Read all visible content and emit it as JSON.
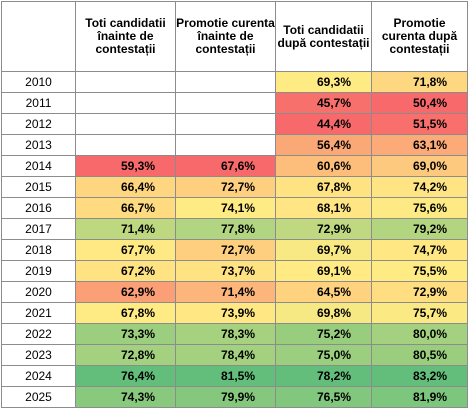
{
  "headers": [
    "",
    "Toti candidatii înainte de contestații",
    "Promotie curenta înainte de contestații",
    "Toti candidatii după contestații",
    "Promotie curenta după contestații"
  ],
  "rows": [
    {
      "year": "2010",
      "c1": "",
      "c2": "",
      "c3": "69,3%",
      "c4": "71,8%"
    },
    {
      "year": "2011",
      "c1": "",
      "c2": "",
      "c3": "45,7%",
      "c4": "50,4%"
    },
    {
      "year": "2012",
      "c1": "",
      "c2": "",
      "c3": "44,4%",
      "c4": "51,5%"
    },
    {
      "year": "2013",
      "c1": "",
      "c2": "",
      "c3": "56,4%",
      "c4": "63,1%"
    },
    {
      "year": "2014",
      "c1": "59,3%",
      "c2": "67,6%",
      "c3": "60,6%",
      "c4": "69,0%"
    },
    {
      "year": "2015",
      "c1": "66,4%",
      "c2": "72,7%",
      "c3": "67,8%",
      "c4": "74,2%"
    },
    {
      "year": "2016",
      "c1": "66,7%",
      "c2": "74,1%",
      "c3": "68,1%",
      "c4": "75,6%"
    },
    {
      "year": "2017",
      "c1": "71,4%",
      "c2": "77,8%",
      "c3": "72,9%",
      "c4": "79,2%"
    },
    {
      "year": "2018",
      "c1": "67,7%",
      "c2": "72,7%",
      "c3": "69,7%",
      "c4": "74,7%"
    },
    {
      "year": "2019",
      "c1": "67,2%",
      "c2": "73,7%",
      "c3": "69,1%",
      "c4": "75,5%"
    },
    {
      "year": "2020",
      "c1": "62,9%",
      "c2": "71,4%",
      "c3": "64,5%",
      "c4": "72,9%"
    },
    {
      "year": "2021",
      "c1": "67,8%",
      "c2": "73,9%",
      "c3": "69,8%",
      "c4": "75,7%"
    },
    {
      "year": "2022",
      "c1": "73,3%",
      "c2": "78,3%",
      "c3": "75,2%",
      "c4": "80,0%"
    },
    {
      "year": "2023",
      "c1": "72,8%",
      "c2": "78,4%",
      "c3": "75,0%",
      "c4": "80,5%"
    },
    {
      "year": "2024",
      "c1": "76,4%",
      "c2": "81,5%",
      "c3": "78,2%",
      "c4": "83,2%"
    },
    {
      "year": "2025",
      "c1": "74,3%",
      "c2": "79,9%",
      "c3": "76,5%",
      "c4": "81,9%"
    }
  ],
  "colors": {
    "scale_low": "#f8696b",
    "scale_mid": "#ffeb84",
    "scale_high": "#63be7b"
  }
}
